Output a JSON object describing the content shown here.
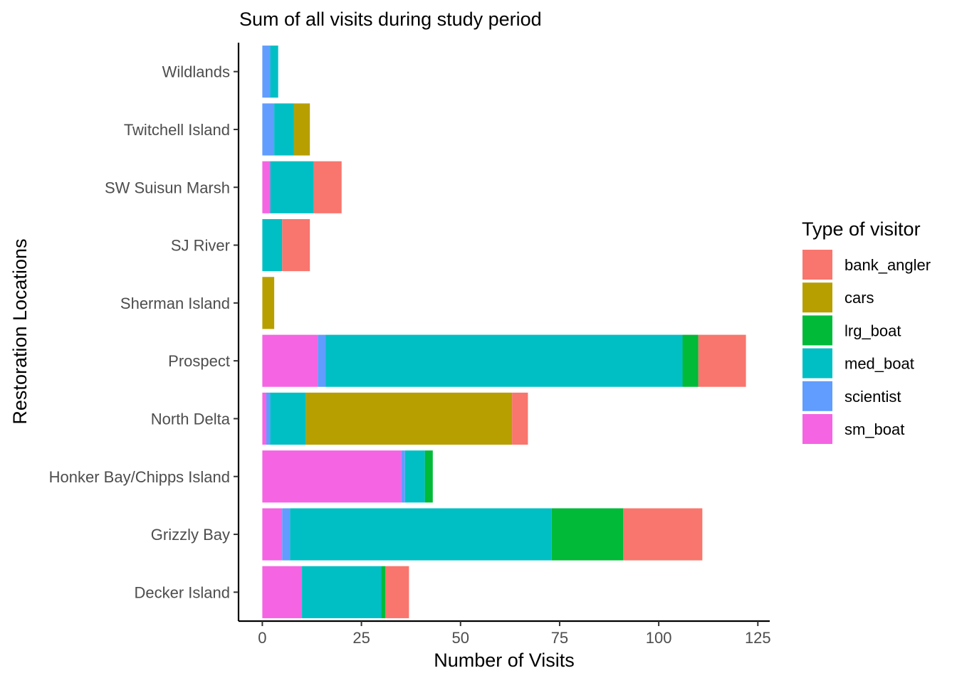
{
  "chart_data": {
    "type": "bar",
    "orientation": "horizontal",
    "stacked": true,
    "title": "Sum of all visits during study period",
    "xlabel": "Number of Visits",
    "ylabel": "Restoration Locations",
    "xlim": [
      -6,
      128
    ],
    "xticks": [
      "0",
      "25",
      "50",
      "75",
      "100",
      "125"
    ],
    "xtick_values": [
      0,
      25,
      50,
      75,
      100,
      125
    ],
    "grid": false,
    "legend": {
      "title": "Type of visitor",
      "position": "right"
    },
    "categories": [
      "Decker Island",
      "Grizzly Bay",
      "Honker Bay/Chipps Island",
      "North Delta",
      "Prospect",
      "Sherman Island",
      "SJ River",
      "SW Suisun Marsh",
      "Twitchell Island",
      "Wildlands"
    ],
    "series": [
      {
        "name": "sm_boat",
        "color": "#F564E3",
        "values": [
          10,
          5,
          35,
          1,
          14,
          0,
          0,
          2,
          0,
          0
        ]
      },
      {
        "name": "scientist",
        "color": "#619CFF",
        "values": [
          0,
          2,
          1,
          1,
          2,
          0,
          0,
          0,
          3,
          2
        ]
      },
      {
        "name": "med_boat",
        "color": "#00BFC4",
        "values": [
          20,
          66,
          5,
          9,
          90,
          0,
          5,
          11,
          5,
          2
        ]
      },
      {
        "name": "lrg_boat",
        "color": "#00BA38",
        "values": [
          1,
          18,
          2,
          0,
          4,
          0,
          0,
          0,
          0,
          0
        ]
      },
      {
        "name": "cars",
        "color": "#B79F00",
        "values": [
          0,
          0,
          0,
          52,
          0,
          3,
          0,
          0,
          4,
          0
        ]
      },
      {
        "name": "bank_angler",
        "color": "#F8766D",
        "values": [
          6,
          20,
          0,
          4,
          12,
          0,
          7,
          7,
          0,
          0
        ]
      }
    ],
    "legend_order": [
      "bank_angler",
      "cars",
      "lrg_boat",
      "med_boat",
      "scientist",
      "sm_boat"
    ]
  }
}
